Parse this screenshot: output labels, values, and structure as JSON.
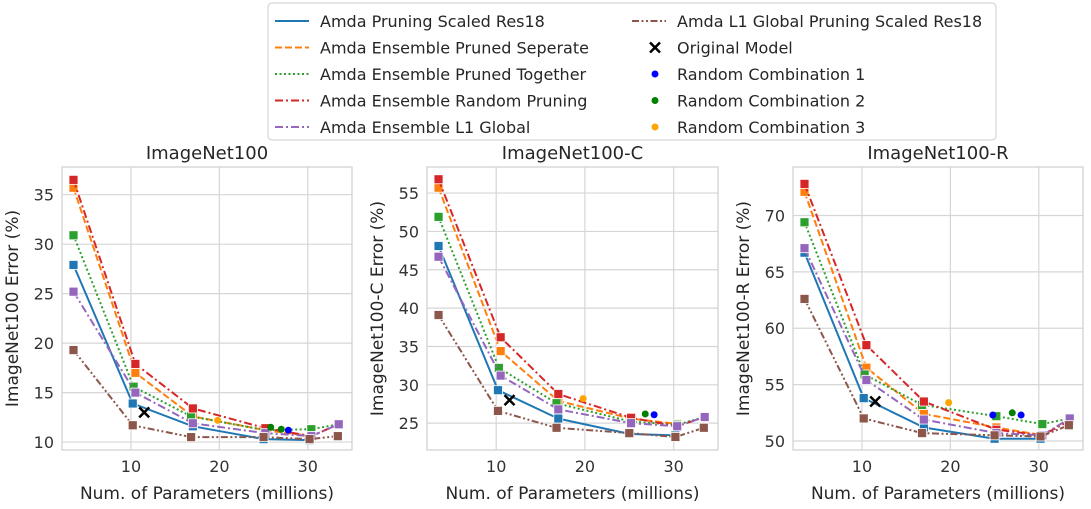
{
  "legend": {
    "entries": [
      {
        "label": "Amda Pruning Scaled Res18",
        "color": "#1f77b4",
        "dash": "solid"
      },
      {
        "label": "Amda Ensemble Pruned Seperate",
        "color": "#ff7f0e",
        "dash": "dashed"
      },
      {
        "label": "Amda Ensemble Pruned Together",
        "color": "#2ca02c",
        "dash": "dotted"
      },
      {
        "label": "Amda Ensemble Random Pruning",
        "color": "#d62728",
        "dash": "dashdot"
      },
      {
        "label": "Amda Ensemble L1 Global",
        "color": "#9467bd",
        "dash": "dashdot"
      },
      {
        "label": "Amda L1 Global Pruning Scaled Res18",
        "color": "#8c564b",
        "dash": "dashdotdot"
      },
      {
        "label": "Original Model",
        "color": "#000000",
        "marker": "x"
      },
      {
        "label": "Random Combination 1",
        "color": "#0000ff",
        "marker": "dot"
      },
      {
        "label": "Random Combination 2",
        "color": "#008000",
        "marker": "dot"
      },
      {
        "label": "Random Combination 3",
        "color": "#ffa500",
        "marker": "dot"
      }
    ]
  },
  "chart_data": [
    {
      "type": "line",
      "title": "ImageNet100",
      "xlabel": "Num. of Parameters (millions)",
      "ylabel": "ImageNet100 Error (%)",
      "xlim": [
        2.2,
        35.0
      ],
      "ylim": [
        9.2,
        37.8
      ],
      "xticks": [
        10,
        20,
        30
      ],
      "yticks": [
        10,
        15,
        20,
        25,
        30,
        35
      ],
      "grid": true,
      "series": [
        {
          "name": "Amda Pruning Scaled Res18",
          "x": [
            3.5,
            10.2,
            17.0,
            25.0,
            30.2
          ],
          "y": [
            27.9,
            13.9,
            11.6,
            10.3,
            10.2
          ]
        },
        {
          "name": "Amda Ensemble Pruned Seperate",
          "x": [
            3.5,
            10.5,
            17.0,
            25.2,
            30.4
          ],
          "y": [
            35.7,
            17.0,
            12.6,
            11.2,
            10.6
          ]
        },
        {
          "name": "Amda Ensemble Pruned Together",
          "x": [
            3.5,
            10.3,
            16.8,
            25.2,
            30.4,
            33.5
          ],
          "y": [
            30.9,
            15.6,
            12.6,
            11.2,
            11.3,
            11.8
          ]
        },
        {
          "name": "Amda Ensemble Random Pruning",
          "x": [
            3.5,
            10.5,
            17.0,
            25.2,
            30.4,
            33.5
          ],
          "y": [
            36.5,
            17.9,
            13.4,
            11.4,
            10.6,
            11.8
          ]
        },
        {
          "name": "Amda Ensemble L1 Global",
          "x": [
            3.5,
            10.5,
            17.0,
            25.2,
            30.4,
            33.5
          ],
          "y": [
            25.2,
            15.0,
            11.9,
            10.9,
            10.6,
            11.8
          ]
        },
        {
          "name": "Amda L1 Global Pruning Scaled Res18",
          "x": [
            3.5,
            10.2,
            16.8,
            25.0,
            30.2,
            33.4
          ],
          "y": [
            19.3,
            11.7,
            10.5,
            10.5,
            10.3,
            10.6
          ]
        }
      ],
      "original_model": {
        "x": 11.5,
        "y": 13.0
      },
      "random_combinations": [
        {
          "name": "Random Combination 1",
          "x": [
            27.8
          ],
          "y": [
            11.2
          ]
        },
        {
          "name": "Random Combination 2",
          "x": [
            25.8,
            27.0
          ],
          "y": [
            11.5,
            11.3
          ]
        },
        {
          "name": "Random Combination 3",
          "x": [
            19.8
          ],
          "y": [
            12.2
          ]
        }
      ]
    },
    {
      "type": "line",
      "title": "ImageNet100-C",
      "xlabel": "Num. of Parameters (millions)",
      "ylabel": "ImageNet100-C Error (%)",
      "xlim": [
        2.2,
        35.0
      ],
      "ylim": [
        21.5,
        58.4
      ],
      "xticks": [
        10,
        20,
        30
      ],
      "yticks": [
        25,
        30,
        35,
        40,
        45,
        50,
        55
      ],
      "grid": true,
      "series": [
        {
          "name": "Amda Pruning Scaled Res18",
          "x": [
            3.5,
            10.2,
            17.0,
            25.0,
            30.2
          ],
          "y": [
            48.1,
            29.3,
            25.6,
            23.6,
            23.4
          ]
        },
        {
          "name": "Amda Ensemble Pruned Seperate",
          "x": [
            3.5,
            10.5,
            17.0,
            25.2,
            30.4
          ],
          "y": [
            55.7,
            34.4,
            27.9,
            25.6,
            24.9
          ]
        },
        {
          "name": "Amda Ensemble Pruned Together",
          "x": [
            3.5,
            10.3,
            16.8,
            25.2,
            30.4,
            33.5
          ],
          "y": [
            51.9,
            32.2,
            27.6,
            25.2,
            24.8,
            25.8
          ]
        },
        {
          "name": "Amda Ensemble Random Pruning",
          "x": [
            3.5,
            10.5,
            17.0,
            25.2,
            30.4,
            33.5
          ],
          "y": [
            56.8,
            36.2,
            28.8,
            25.7,
            24.6,
            25.8
          ]
        },
        {
          "name": "Amda Ensemble L1 Global",
          "x": [
            3.5,
            10.5,
            17.0,
            25.2,
            30.4,
            33.5
          ],
          "y": [
            46.7,
            31.2,
            26.8,
            25.0,
            24.6,
            25.8
          ]
        },
        {
          "name": "Amda L1 Global Pruning Scaled Res18",
          "x": [
            3.5,
            10.2,
            16.8,
            25.0,
            30.2,
            33.4
          ],
          "y": [
            39.1,
            26.6,
            24.4,
            23.7,
            23.2,
            24.4
          ]
        }
      ],
      "original_model": {
        "x": 11.5,
        "y": 28.0
      },
      "random_combinations": [
        {
          "name": "Random Combination 1",
          "x": [
            27.8
          ],
          "y": [
            26.1
          ]
        },
        {
          "name": "Random Combination 2",
          "x": [
            26.8
          ],
          "y": [
            26.2
          ]
        },
        {
          "name": "Random Combination 3",
          "x": [
            19.8
          ],
          "y": [
            28.2
          ]
        }
      ]
    },
    {
      "type": "line",
      "title": "ImageNet100-R",
      "xlabel": "Num. of Parameters (millions)",
      "ylabel": "ImageNet100-R Error (%)",
      "xlim": [
        2.2,
        35.0
      ],
      "ylim": [
        49.2,
        74.3
      ],
      "xticks": [
        10,
        20,
        30
      ],
      "yticks": [
        50,
        55,
        60,
        65,
        70
      ],
      "grid": true,
      "series": [
        {
          "name": "Amda Pruning Scaled Res18",
          "x": [
            3.5,
            10.2,
            17.0,
            25.0,
            30.2
          ],
          "y": [
            66.7,
            53.8,
            51.2,
            50.2,
            50.2
          ]
        },
        {
          "name": "Amda Ensemble Pruned Seperate",
          "x": [
            3.5,
            10.5,
            17.0,
            25.2,
            30.4
          ],
          "y": [
            72.1,
            56.5,
            52.4,
            51.2,
            50.5
          ]
        },
        {
          "name": "Amda Ensemble Pruned Together",
          "x": [
            3.5,
            10.3,
            16.8,
            25.2,
            30.4,
            33.5
          ],
          "y": [
            69.4,
            55.9,
            53.2,
            52.2,
            51.5,
            52.0
          ]
        },
        {
          "name": "Amda Ensemble Random Pruning",
          "x": [
            3.5,
            10.5,
            17.0,
            25.2,
            30.4,
            33.5
          ],
          "y": [
            72.8,
            58.5,
            53.5,
            51.0,
            50.5,
            51.8
          ]
        },
        {
          "name": "Amda Ensemble L1 Global",
          "x": [
            3.5,
            10.5,
            17.0,
            25.2,
            30.4,
            33.5
          ],
          "y": [
            67.1,
            55.4,
            51.9,
            50.7,
            50.5,
            52.0
          ]
        },
        {
          "name": "Amda L1 Global Pruning Scaled Res18",
          "x": [
            3.5,
            10.2,
            16.8,
            25.0,
            30.2,
            33.4
          ],
          "y": [
            62.6,
            52.0,
            50.7,
            50.5,
            50.4,
            51.4
          ]
        }
      ],
      "original_model": {
        "x": 11.5,
        "y": 53.5
      },
      "random_combinations": [
        {
          "name": "Random Combination 1",
          "x": [
            24.8,
            28.0
          ],
          "y": [
            52.3,
            52.3
          ]
        },
        {
          "name": "Random Combination 2",
          "x": [
            27.0
          ],
          "y": [
            52.5
          ]
        },
        {
          "name": "Random Combination 3",
          "x": [
            19.8
          ],
          "y": [
            53.4
          ]
        }
      ]
    }
  ]
}
